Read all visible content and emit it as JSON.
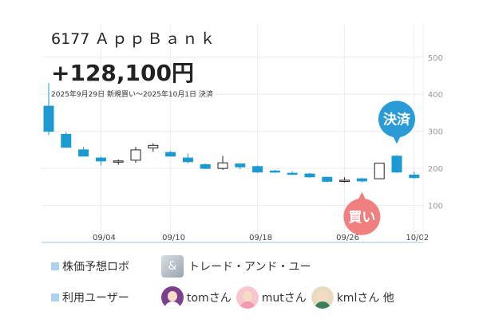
{
  "header": {
    "code": "6177",
    "name": "ＡｐｐＢａｎｋ",
    "profit": "+128,100円",
    "period": "2025年9月29日 新規買い〜2025年10月1日 決済"
  },
  "chart_data": {
    "type": "candlestick",
    "y_ticks": [
      100,
      200,
      300,
      400,
      500
    ],
    "y_tick_labels": [
      "100",
      "200",
      "300",
      "400",
      "500"
    ],
    "ylim": [
      0,
      590
    ],
    "x_tick_labels": [
      {
        "label": "09/04",
        "index": 3
      },
      {
        "label": "09/10",
        "index": 7
      },
      {
        "label": "09/18",
        "index": 12
      },
      {
        "label": "09/26",
        "index": 17
      },
      {
        "label": "10/02",
        "index": 21
      }
    ],
    "grid": true,
    "candles": [
      {
        "o": 368,
        "h": 430,
        "l": 290,
        "c": 300
      },
      {
        "o": 292,
        "h": 298,
        "l": 255,
        "c": 257
      },
      {
        "o": 250,
        "h": 258,
        "l": 232,
        "c": 233
      },
      {
        "o": 228,
        "h": 232,
        "l": 208,
        "c": 220
      },
      {
        "o": 218,
        "h": 224,
        "l": 210,
        "c": 220
      },
      {
        "o": 222,
        "h": 258,
        "l": 215,
        "c": 250
      },
      {
        "o": 255,
        "h": 268,
        "l": 245,
        "c": 262
      },
      {
        "o": 243,
        "h": 247,
        "l": 232,
        "c": 233
      },
      {
        "o": 228,
        "h": 240,
        "l": 213,
        "c": 218
      },
      {
        "o": 210,
        "h": 213,
        "l": 198,
        "c": 200
      },
      {
        "o": 200,
        "h": 234,
        "l": 196,
        "c": 215
      },
      {
        "o": 212,
        "h": 214,
        "l": 198,
        "c": 204
      },
      {
        "o": 205,
        "h": 208,
        "l": 188,
        "c": 190
      },
      {
        "o": 193,
        "h": 196,
        "l": 188,
        "c": 190
      },
      {
        "o": 187,
        "h": 192,
        "l": 184,
        "c": 186
      },
      {
        "o": 185,
        "h": 188,
        "l": 175,
        "c": 177
      },
      {
        "o": 176,
        "h": 178,
        "l": 162,
        "c": 165
      },
      {
        "o": 166,
        "h": 176,
        "l": 162,
        "c": 168
      },
      {
        "o": 172,
        "h": 174,
        "l": 162,
        "c": 166
      },
      {
        "o": 172,
        "h": 215,
        "l": 172,
        "c": 214
      },
      {
        "o": 233,
        "h": 236,
        "l": 188,
        "c": 190
      },
      {
        "o": 182,
        "h": 192,
        "l": 172,
        "c": 175
      }
    ],
    "markers": [
      {
        "label": "買い",
        "index": 18,
        "color": "#f08080"
      },
      {
        "label": "決済",
        "index": 20,
        "color": "#2b9bd8"
      }
    ],
    "colors": {
      "down": "#1a9ad0",
      "up_fill": "#ffffff",
      "up_stroke": "#222222",
      "axis": "#9dc8e6"
    }
  },
  "legend": {
    "robot_label": "株価予想ロボ",
    "robot_name": "トレード・アンド・ユー",
    "users_label": "利用ユーザー",
    "users": [
      "tomさん",
      "mutさん",
      "kmlさん 他"
    ]
  }
}
